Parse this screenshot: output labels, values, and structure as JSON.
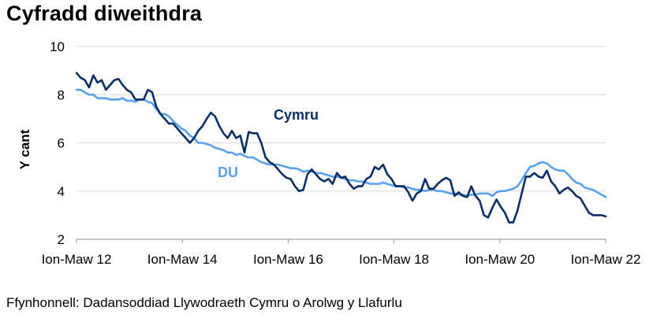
{
  "title": "Cyfradd diweithdra",
  "source": "Ffynhonnell: Dadansoddiad Llywodraeth Cymru o Arolwg y Llafurlu",
  "chart_data": {
    "type": "line",
    "title": "Cyfradd diweithdra",
    "xlabel": "",
    "ylabel": "Y cant",
    "ylim": [
      2,
      10
    ],
    "yticks": [
      2,
      4,
      6,
      8,
      10
    ],
    "xtick_labels": [
      "Ion-Maw 12",
      "Ion-Maw 14",
      "Ion-Maw 16",
      "Ion-Maw 18",
      "Ion-Maw 20",
      "Ion-Maw 22"
    ],
    "grid": "horizontal",
    "legend": "inline labels",
    "series": [
      {
        "name": "Cymru",
        "color": "#0b2e63",
        "values": [
          8.9,
          8.7,
          8.6,
          8.3,
          8.8,
          8.5,
          8.6,
          8.2,
          8.4,
          8.6,
          8.65,
          8.4,
          8.2,
          8.1,
          7.8,
          7.8,
          7.8,
          8.2,
          8.1,
          7.5,
          7.2,
          7.0,
          6.8,
          6.8,
          6.6,
          6.4,
          6.2,
          6.0,
          6.2,
          6.5,
          6.7,
          7.0,
          7.25,
          7.1,
          6.7,
          6.4,
          6.2,
          6.5,
          6.2,
          6.3,
          5.6,
          6.45,
          6.4,
          6.4,
          6.0,
          5.4,
          5.2,
          5.1,
          4.9,
          4.7,
          4.55,
          4.5,
          4.2,
          4.0,
          4.05,
          4.7,
          4.9,
          4.7,
          4.5,
          4.4,
          4.5,
          4.3,
          4.75,
          4.55,
          4.6,
          4.3,
          4.1,
          4.2,
          4.2,
          4.5,
          4.6,
          5.0,
          4.9,
          5.1,
          4.7,
          4.5,
          4.2,
          4.2,
          4.2,
          3.95,
          3.6,
          3.9,
          4.0,
          4.5,
          4.1,
          4.1,
          4.3,
          4.45,
          4.55,
          4.45,
          3.8,
          3.95,
          3.8,
          3.75,
          4.2,
          3.8,
          3.6,
          3.0,
          2.9,
          3.3,
          3.65,
          3.35,
          3.1,
          2.7,
          2.7,
          3.2,
          3.9,
          4.6,
          4.6,
          4.75,
          4.6,
          4.55,
          4.85,
          4.4,
          4.2,
          3.9,
          4.05,
          4.15,
          4.0,
          3.8,
          3.7,
          3.4,
          3.1,
          3.0,
          3.0,
          3.0,
          2.95
        ]
      },
      {
        "name": "DU",
        "color": "#5aa0ea",
        "values": [
          8.2,
          8.2,
          8.1,
          8.0,
          8.0,
          7.85,
          7.85,
          7.85,
          7.8,
          7.8,
          7.8,
          7.85,
          7.75,
          7.75,
          7.7,
          7.8,
          7.8,
          7.7,
          7.65,
          7.4,
          7.2,
          7.2,
          7.1,
          6.9,
          6.75,
          6.6,
          6.5,
          6.3,
          6.2,
          6.0,
          6.0,
          5.95,
          5.9,
          5.8,
          5.75,
          5.7,
          5.6,
          5.6,
          5.5,
          5.55,
          5.45,
          5.4,
          5.4,
          5.3,
          5.2,
          5.15,
          5.1,
          5.1,
          5.1,
          5.05,
          5.0,
          4.95,
          4.95,
          4.9,
          4.8,
          4.85,
          4.8,
          4.75,
          4.75,
          4.7,
          4.65,
          4.6,
          4.6,
          4.55,
          4.5,
          4.45,
          4.45,
          4.4,
          4.4,
          4.35,
          4.3,
          4.3,
          4.3,
          4.35,
          4.3,
          4.25,
          4.2,
          4.2,
          4.15,
          4.15,
          4.1,
          4.05,
          4.05,
          4.0,
          4.05,
          4.05,
          4.0,
          4.0,
          3.95,
          3.9,
          3.9,
          3.85,
          3.85,
          3.8,
          3.85,
          3.85,
          3.9,
          3.9,
          3.9,
          3.8,
          3.95,
          4.0,
          4.0,
          4.05,
          4.1,
          4.2,
          4.45,
          4.75,
          5.0,
          5.05,
          5.15,
          5.2,
          5.15,
          5.0,
          4.9,
          4.85,
          4.85,
          4.7,
          4.5,
          4.35,
          4.3,
          4.15,
          4.1,
          4.05,
          3.95,
          3.85,
          3.75
        ]
      }
    ]
  }
}
